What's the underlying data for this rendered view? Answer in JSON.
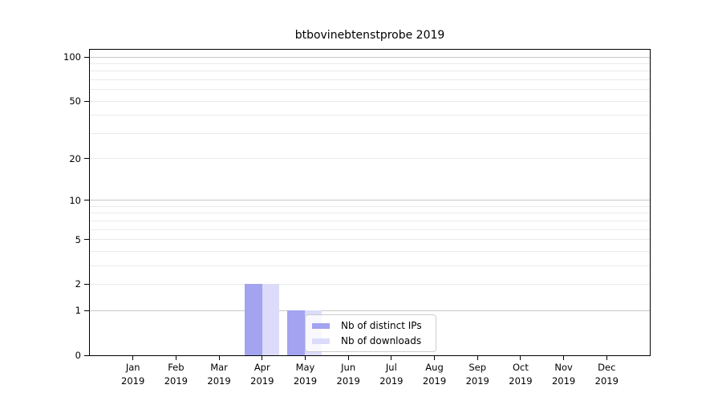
{
  "chart_data": {
    "type": "bar",
    "title": "btbovinebtenstprobe 2019",
    "categories": [
      {
        "month": "Jan",
        "year": "2019"
      },
      {
        "month": "Feb",
        "year": "2019"
      },
      {
        "month": "Mar",
        "year": "2019"
      },
      {
        "month": "Apr",
        "year": "2019"
      },
      {
        "month": "May",
        "year": "2019"
      },
      {
        "month": "Jun",
        "year": "2019"
      },
      {
        "month": "Jul",
        "year": "2019"
      },
      {
        "month": "Aug",
        "year": "2019"
      },
      {
        "month": "Sep",
        "year": "2019"
      },
      {
        "month": "Oct",
        "year": "2019"
      },
      {
        "month": "Nov",
        "year": "2019"
      },
      {
        "month": "Dec",
        "year": "2019"
      }
    ],
    "series": [
      {
        "name": "Nb of distinct IPs",
        "color": "#a3a3f0",
        "values": [
          0,
          0,
          0,
          2,
          1,
          0,
          0,
          0,
          0,
          0,
          0,
          0
        ]
      },
      {
        "name": "Nb of downloads",
        "color": "#dcdcfa",
        "values": [
          0,
          0,
          0,
          2,
          1,
          0,
          0,
          0,
          0,
          0,
          0,
          0
        ]
      }
    ],
    "yscale": "log10(1+y)",
    "ylim": [
      0,
      112
    ],
    "yticks": [
      0,
      1,
      2,
      5,
      10,
      20,
      50,
      100
    ],
    "grid": {
      "major": [
        1,
        10,
        100
      ],
      "minor": [
        2,
        3,
        4,
        5,
        6,
        7,
        8,
        9,
        20,
        30,
        40,
        50,
        60,
        70,
        80,
        90
      ],
      "major_color": "#c8c8c8",
      "minor_color": "#eaeaea"
    },
    "axis_color": "#000000",
    "legend": {
      "position": "inside-lower-center"
    }
  }
}
